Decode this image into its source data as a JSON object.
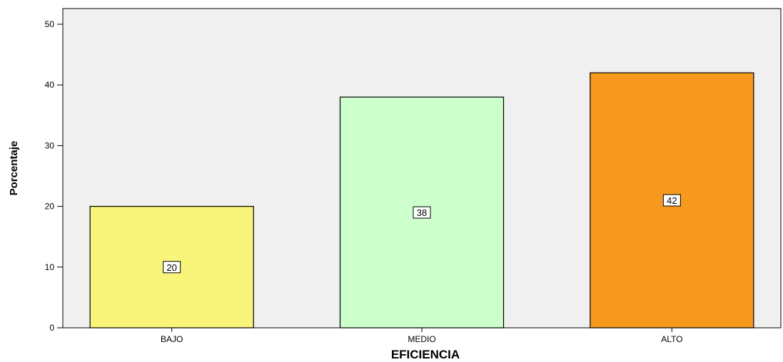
{
  "chart_data": {
    "type": "bar",
    "categories": [
      "BAJO",
      "MEDIO",
      "ALTO"
    ],
    "values": [
      20,
      38,
      42
    ],
    "data_labels": [
      "20",
      "38",
      "42"
    ],
    "colors": [
      "#f9f57a",
      "#ccffcc",
      "#f7991e"
    ],
    "title": "",
    "xlabel": "EFICIENCIA",
    "ylabel": "Porcentaje",
    "ylim": [
      0,
      50
    ],
    "yticks": [
      0,
      10,
      20,
      30,
      40,
      50
    ],
    "plot_background": "#f0f0f0",
    "grid": false
  }
}
